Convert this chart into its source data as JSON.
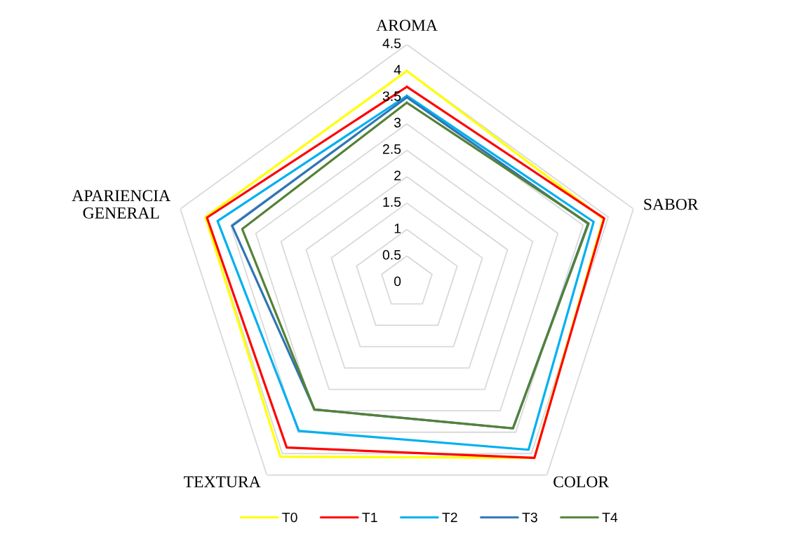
{
  "chart_data": {
    "type": "radar",
    "categories": [
      "AROMA",
      "SABOR",
      "COLOR",
      "TEXTURA",
      "APARIENCIA\nGENERAL"
    ],
    "series": [
      {
        "name": "T0",
        "color": "#ffff00",
        "values": [
          4.0,
          3.9,
          4.1,
          4.07,
          4.0
        ]
      },
      {
        "name": "T1",
        "color": "#ff0000",
        "values": [
          3.7,
          3.92,
          4.1,
          3.86,
          3.97
        ]
      },
      {
        "name": "T2",
        "color": "#00b0f0",
        "values": [
          3.53,
          3.71,
          3.91,
          3.47,
          3.76
        ]
      },
      {
        "name": "T3",
        "color": "#2e75b6",
        "values": [
          3.5,
          3.6,
          3.41,
          2.97,
          3.47
        ]
      },
      {
        "name": "T4",
        "color": "#548235",
        "values": [
          3.4,
          3.61,
          3.41,
          2.97,
          3.27
        ]
      }
    ],
    "ylim": [
      0,
      4.5
    ],
    "yticks": [
      0,
      0.5,
      1,
      1.5,
      2,
      2.5,
      3,
      3.5,
      4,
      4.5
    ],
    "grid": true,
    "legend": "bottom"
  }
}
